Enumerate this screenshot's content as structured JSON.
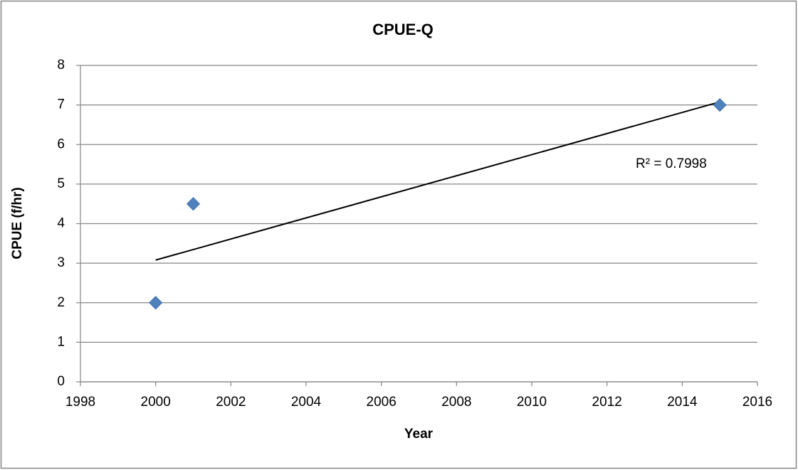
{
  "chart_data": {
    "type": "scatter",
    "title": "CPUE-Q",
    "x_label": "Year",
    "y_label": "CPUE (f/hr)",
    "series": [
      {
        "name": "CPUE-Q",
        "color": "#4f81bd",
        "x": [
          2000,
          2001,
          2015
        ],
        "values": [
          2,
          4.5,
          7
        ]
      }
    ],
    "trendline": {
      "type": "linear",
      "color": "#000000",
      "annotation": "R² = 0.7998"
    },
    "xlim": [
      1998,
      2016
    ],
    "xticks": [
      1998,
      2000,
      2002,
      2004,
      2006,
      2008,
      2010,
      2012,
      2014,
      2016
    ],
    "ylim": [
      0,
      8
    ],
    "yticks": [
      0,
      1,
      2,
      3,
      4,
      5,
      6,
      7,
      8
    ],
    "grid": true
  }
}
